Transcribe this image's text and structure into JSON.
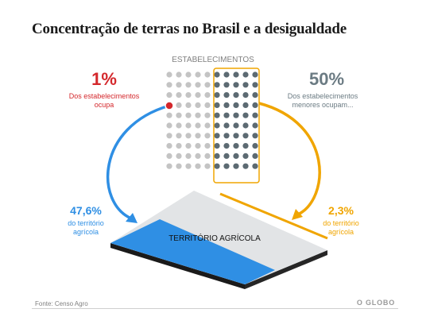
{
  "title": "Concentração de terras no Brasil e a desigualdade",
  "column_label": "ESTABELECIMENTOS",
  "left_top": {
    "value": "1%",
    "line1": "Dos estabelecimentos",
    "line2": "ocupa"
  },
  "right_top": {
    "value": "50%",
    "line1": "Dos estabelecimentos",
    "line2": "menores ocupam..."
  },
  "left_bottom": {
    "value": "47,6%",
    "line1": "do território",
    "line2": "agrícola"
  },
  "right_bottom": {
    "value": "2,3%",
    "line1": "do território",
    "line2": "agrícola"
  },
  "land_label": "TERRITÓRIO AGRÍCOLA",
  "source": "Fonte: Censo Agro",
  "logo": "O GLOBO",
  "dot_grid": {
    "rows": 10,
    "cols": 10,
    "highlight_fraction": 0.5,
    "red_dot_share": 0.01
  },
  "colors": {
    "red": "#d4282c",
    "blue": "#2f8fe4",
    "orange": "#f0a500",
    "dark_dot": "#5c6a72",
    "light_dot": "#c4c4c4",
    "gray_text": "#6b7b83"
  }
}
